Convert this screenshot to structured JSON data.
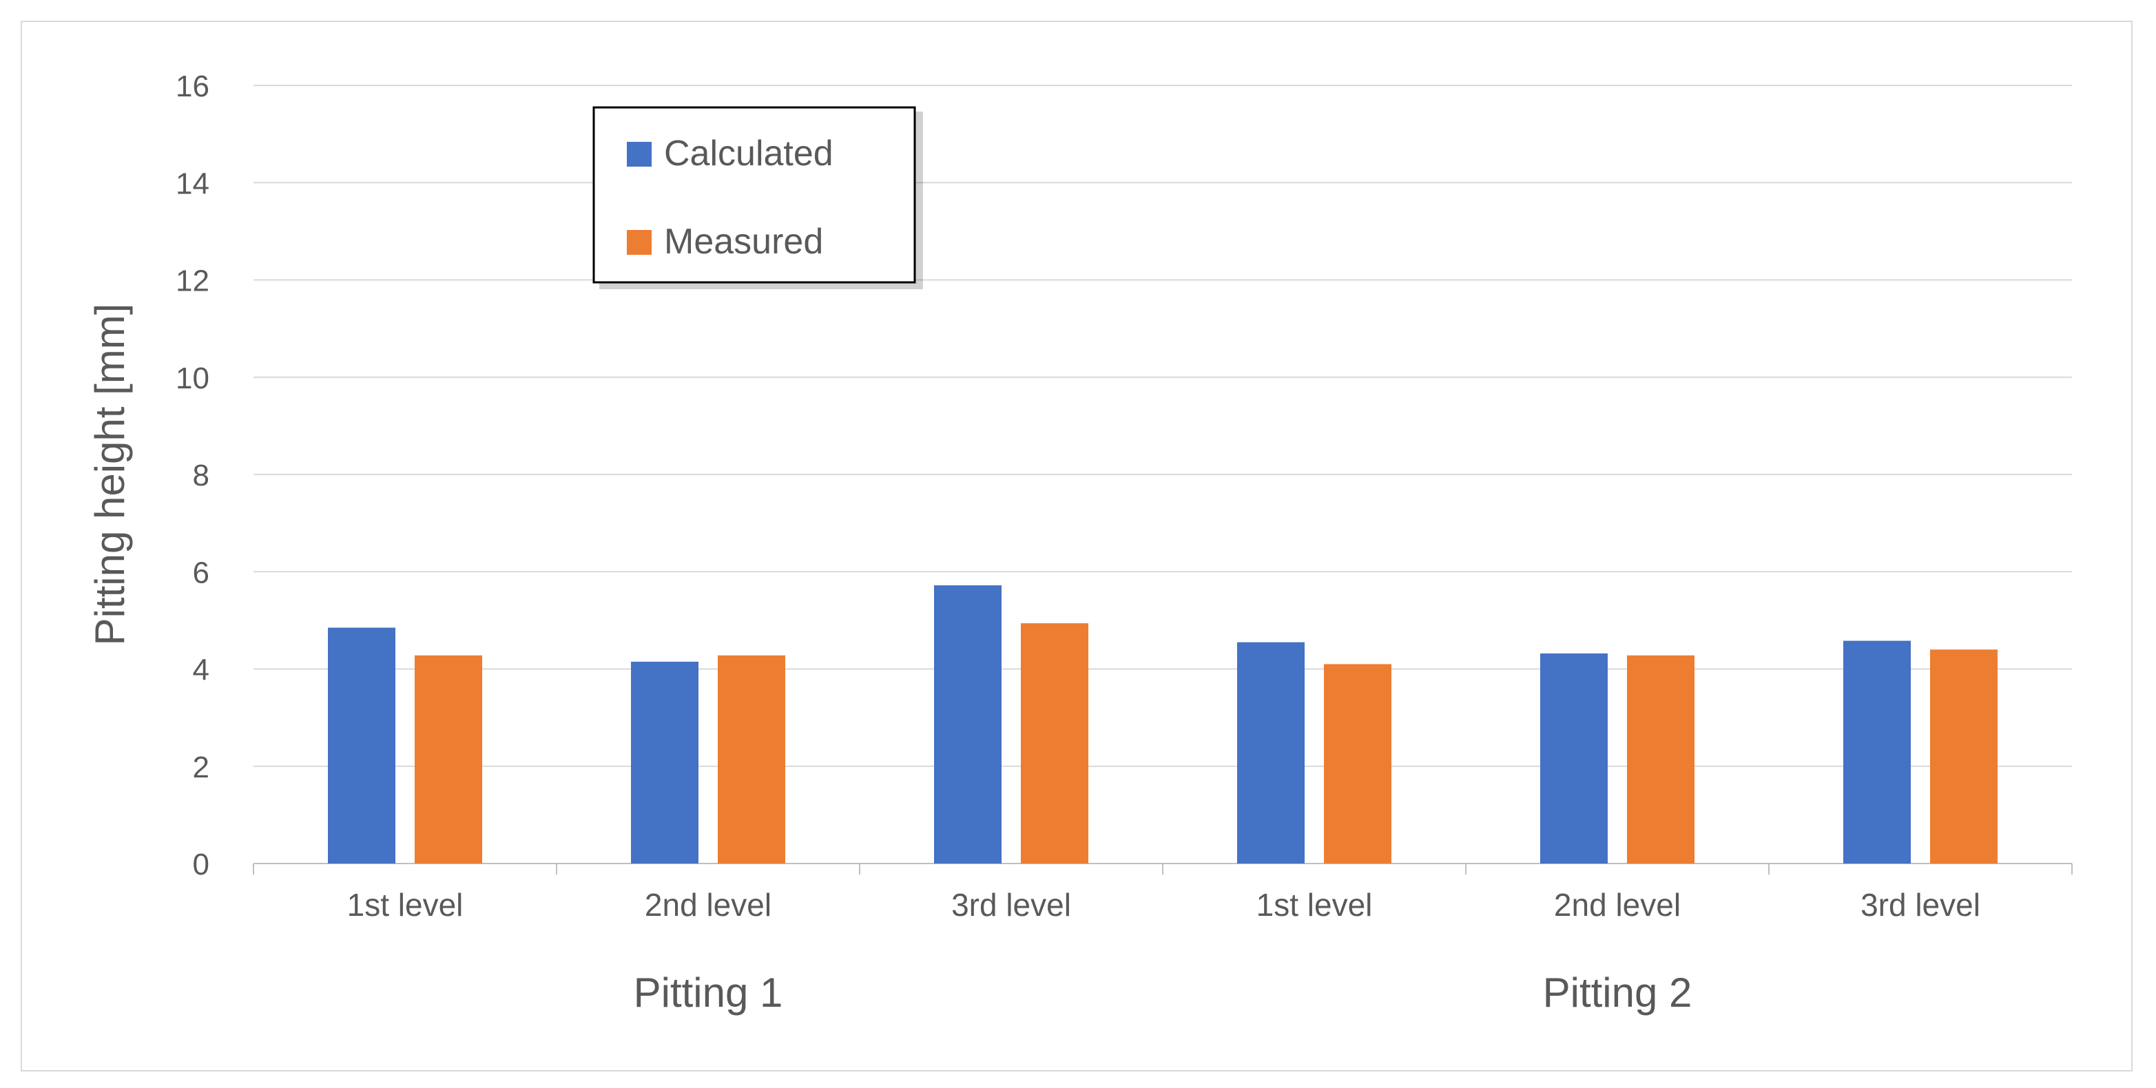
{
  "chart_data": {
    "type": "bar",
    "title": "",
    "ylabel": "Pitting height [mm]",
    "xlabel": "",
    "ylim": [
      0,
      16
    ],
    "yticks": [
      0,
      2,
      4,
      6,
      8,
      10,
      12,
      14,
      16
    ],
    "yticks_text": [
      "0",
      "2",
      "4",
      "6",
      "8",
      "10",
      "12",
      "14",
      "16"
    ],
    "grid": true,
    "legend_position": "top-left",
    "groups": [
      {
        "label": "Pitting 1",
        "categories": [
          "1st level",
          "2nd level",
          "3rd level"
        ]
      },
      {
        "label": "Pitting 2",
        "categories": [
          "1st level",
          "2nd level",
          "3rd level"
        ]
      }
    ],
    "categories": [
      "1st level",
      "2nd level",
      "3rd level",
      "1st level",
      "2nd level",
      "3rd level"
    ],
    "series": [
      {
        "name": "Calculated",
        "color": "#4472c4",
        "values": [
          4.85,
          4.15,
          5.72,
          4.55,
          4.32,
          4.58
        ]
      },
      {
        "name": "Measured",
        "color": "#ed7d31",
        "values": [
          4.28,
          4.28,
          4.94,
          4.1,
          4.28,
          4.4
        ]
      }
    ]
  }
}
